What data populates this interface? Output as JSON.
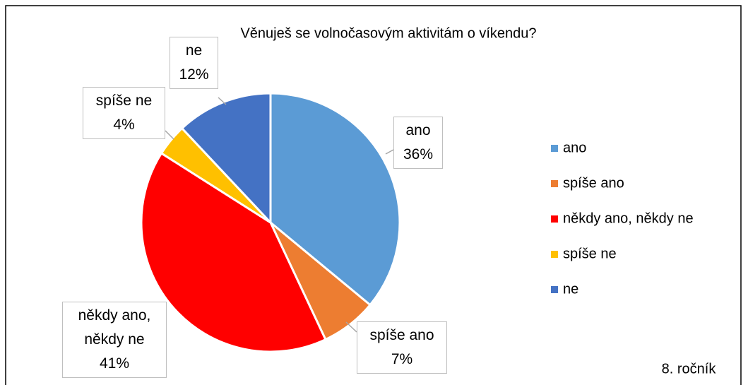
{
  "chart_data": {
    "type": "pie",
    "title": "Věnuješ se volnočasovým aktivitám o víkendu?",
    "categories": [
      "ano",
      "spíše ano",
      "někdy ano, někdy ne",
      "spíše ne",
      "ne"
    ],
    "values": [
      36,
      7,
      41,
      4,
      12
    ],
    "value_labels": [
      "36%",
      "7%",
      "41%",
      "4%",
      "12%"
    ],
    "colors": [
      "#5b9bd5",
      "#ed7d31",
      "#ff0000",
      "#ffc000",
      "#4472c4"
    ],
    "legend": "right",
    "annotation": "8. ročník"
  }
}
